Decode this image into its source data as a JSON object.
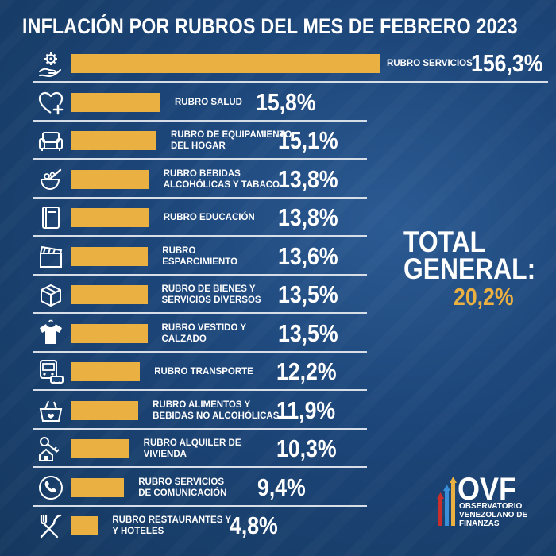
{
  "title": "INFLACIÓN POR RUBROS DEL MES DE FEBRERO 2023",
  "chart_data": {
    "type": "bar",
    "orientation": "horizontal",
    "title": "INFLACIÓN POR RUBROS DEL MES DE FEBRERO 2023",
    "categories": [
      "RUBRO SERVICIOS",
      "RUBRO SALUD",
      "RUBRO DE EQUIPAMIENTO DEL HOGAR",
      "RUBRO BEBIDAS ALCOHÓLICAS Y TABACO",
      "RUBRO EDUCACIÓN",
      "RUBRO ESPARCIMIENTO",
      "RUBRO DE BIENES Y SERVICIOS DIVERSOS",
      "RUBRO VESTIDO Y CALZADO",
      "RUBRO TRANSPORTE",
      "RUBRO ALIMENTOS Y BEBIDAS NO ALCOHÓLICAS",
      "RUBRO ALQUILER DE VIVIENDA",
      "RUBRO SERVICIOS DE COMUNICACIÓN",
      "RUBRO RESTAURANTES Y HOTELES"
    ],
    "category_lines": [
      "RUBRO SERVICIOS",
      "RUBRO SALUD",
      "RUBRO DE EQUIPAMIENTO\nDEL HOGAR",
      "RUBRO BEBIDAS\nALCOHÓLICAS Y TABACO",
      "RUBRO EDUCACIÓN",
      "RUBRO\nESPARCIMIENTO",
      "RUBRO DE BIENES Y\nSERVICIOS DIVERSOS",
      "RUBRO VESTIDO Y\nCALZADO",
      "RUBRO TRANSPORTE",
      "RUBRO ALIMENTOS Y\nBEBIDAS NO ALCOHÓLICAS",
      "RUBRO ALQUILER DE\nVIVIENDA",
      "RUBRO SERVICIOS\nDE COMUNICACIÓN",
      "RUBRO RESTAURANTES Y\nY HOTELES"
    ],
    "values": [
      156.3,
      15.8,
      15.1,
      13.8,
      13.8,
      13.6,
      13.5,
      13.5,
      12.2,
      11.9,
      10.3,
      9.4,
      4.8
    ],
    "value_labels": [
      "156,3%",
      "15,8%",
      "15,1%",
      "13,8%",
      "13,8%",
      "13,6%",
      "13,5%",
      "13,5%",
      "12,2%",
      "11,9%",
      "10,3%",
      "9,4%",
      "4,8%"
    ],
    "icons": [
      "gear-hand-icon",
      "heart-health-icon",
      "sofa-icon",
      "drinks-icon",
      "book-icon",
      "clapperboard-icon",
      "box-icon",
      "shirt-icon",
      "transport-icon",
      "grocery-basket-icon",
      "house-key-icon",
      "phone-icon",
      "fork-knife-icon"
    ],
    "bar_color": "#eab042",
    "unit": "%"
  },
  "total": {
    "label": "TOTAL\nGENERAL:",
    "value": "20,2%",
    "value_color": "#eab042"
  },
  "logo": {
    "name": "OVF",
    "subtitle": "OBSERVATORIO\nVENEZOLANO DE\nFINANZAS"
  },
  "colors": {
    "background": "#1c4578",
    "accent": "#eab042",
    "text": "#ffffff"
  }
}
